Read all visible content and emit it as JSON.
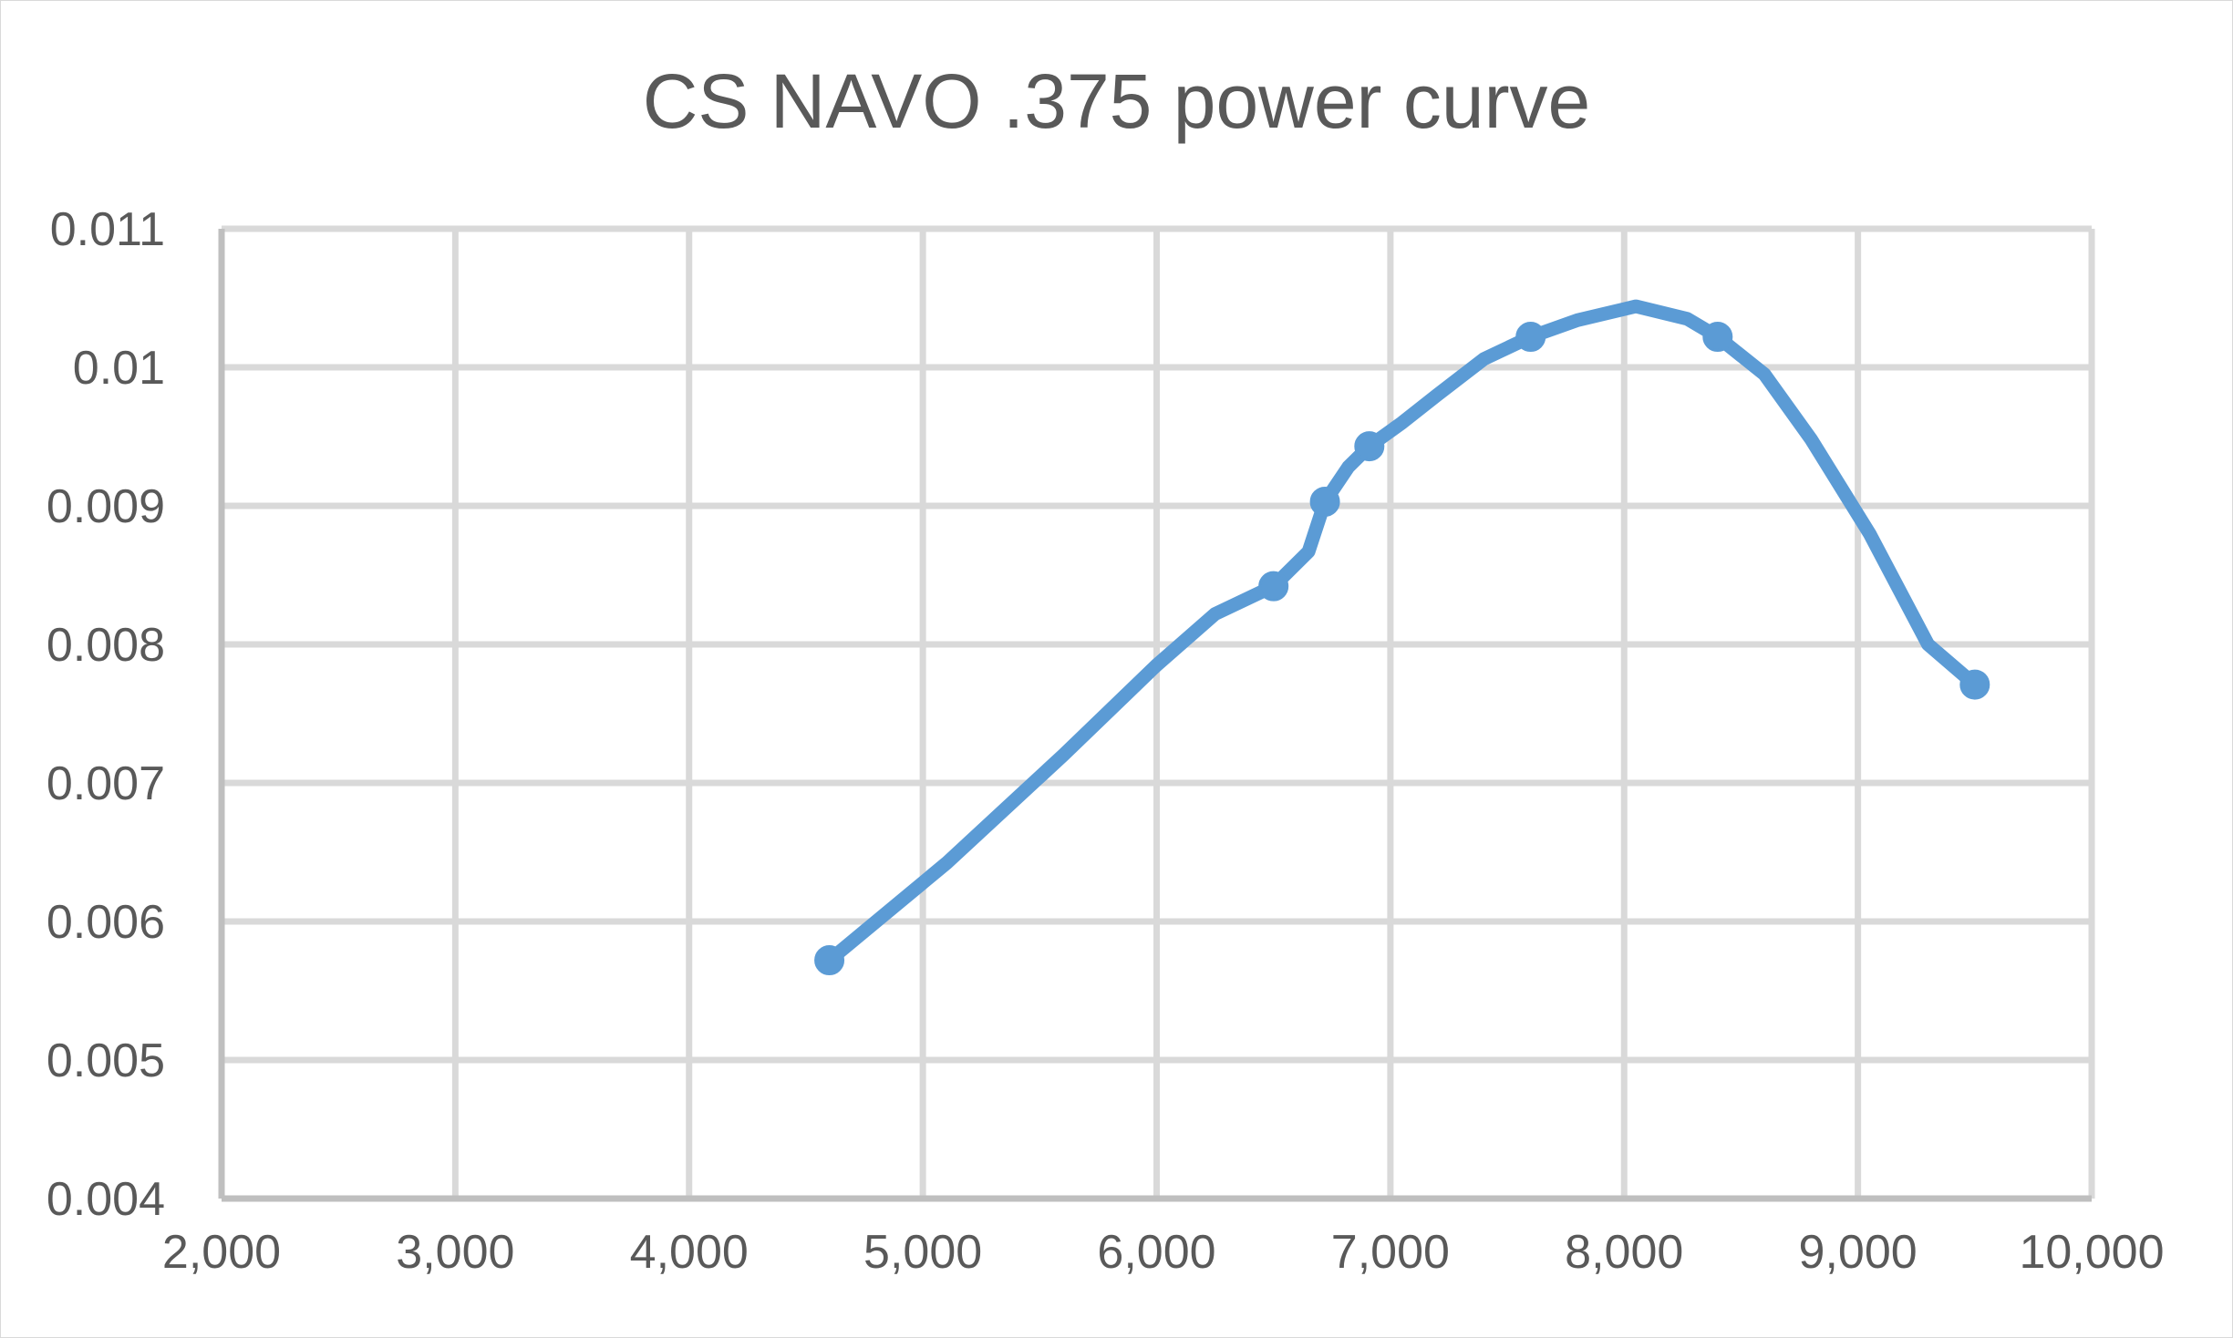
{
  "chart_data": {
    "type": "line",
    "title": "CS NAVO .375 power curve",
    "xlabel": "",
    "ylabel": "",
    "xlim": [
      2000,
      10000
    ],
    "ylim": [
      0.004,
      0.011
    ],
    "x_ticks": [
      2000,
      3000,
      4000,
      5000,
      6000,
      7000,
      8000,
      9000,
      10000
    ],
    "x_tick_labels": [
      "2,000",
      "3,000",
      "4,000",
      "5,000",
      "6,000",
      "7,000",
      "8,000",
      "9,000",
      "10,000"
    ],
    "y_ticks": [
      0.004,
      0.005,
      0.006,
      0.007,
      0.008,
      0.009,
      0.01,
      0.011
    ],
    "y_tick_labels": [
      "0.004",
      "0.005",
      "0.006",
      "0.007",
      "0.008",
      "0.009",
      "0.01",
      "0.011"
    ],
    "grid": true,
    "legend": "none",
    "series": [
      {
        "color": "#5b9bd5",
        "points": [
          {
            "x": 4600,
            "y": 0.00572,
            "marker": true
          },
          {
            "x": 5100,
            "y": 0.00642
          },
          {
            "x": 5600,
            "y": 0.0072
          },
          {
            "x": 6000,
            "y": 0.00785
          },
          {
            "x": 6250,
            "y": 0.00822
          },
          {
            "x": 6500,
            "y": 0.00842,
            "marker": true
          },
          {
            "x": 6650,
            "y": 0.00867
          },
          {
            "x": 6720,
            "y": 0.00903,
            "marker": true
          },
          {
            "x": 6820,
            "y": 0.00928
          },
          {
            "x": 6910,
            "y": 0.00943,
            "marker": true
          },
          {
            "x": 7050,
            "y": 0.0096
          },
          {
            "x": 7200,
            "y": 0.0098
          },
          {
            "x": 7400,
            "y": 0.01006
          },
          {
            "x": 7600,
            "y": 0.01022,
            "marker": true
          },
          {
            "x": 7800,
            "y": 0.01034
          },
          {
            "x": 8050,
            "y": 0.01044
          },
          {
            "x": 8270,
            "y": 0.01035
          },
          {
            "x": 8400,
            "y": 0.01022,
            "marker": true
          },
          {
            "x": 8600,
            "y": 0.00995
          },
          {
            "x": 8800,
            "y": 0.00948
          },
          {
            "x": 9050,
            "y": 0.0088
          },
          {
            "x": 9300,
            "y": 0.008
          },
          {
            "x": 9500,
            "y": 0.00771,
            "marker": true
          }
        ]
      }
    ]
  }
}
